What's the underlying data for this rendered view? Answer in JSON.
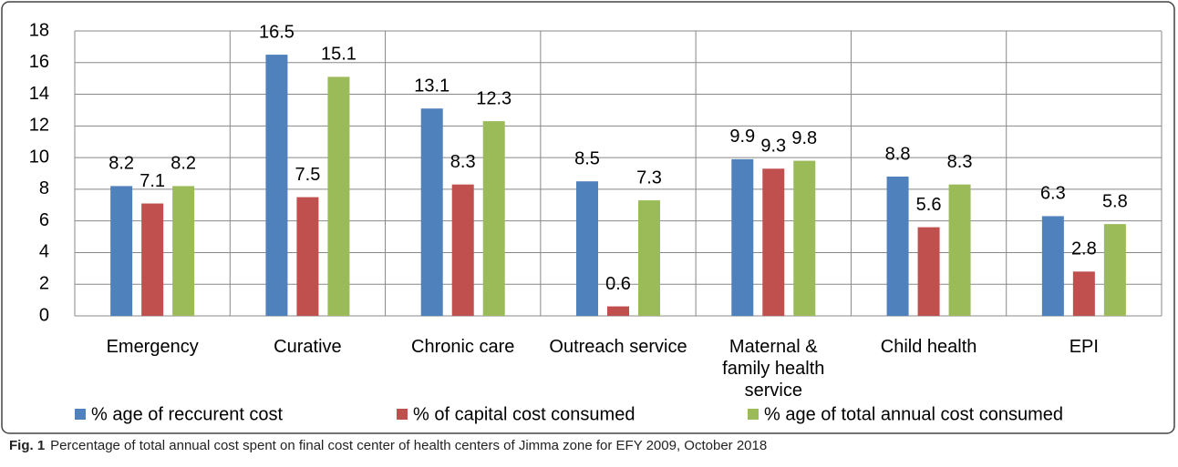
{
  "chart_data": {
    "type": "bar",
    "categories": [
      "Emergency",
      "Curative",
      "Chronic care",
      "Outreach service",
      "Maternal  & family health service",
      "Child health",
      "EPI"
    ],
    "series": [
      {
        "name": "% age of reccurent cost",
        "color": "#4f81bd",
        "values": [
          8.2,
          16.5,
          13.1,
          8.5,
          9.9,
          8.8,
          6.3
        ]
      },
      {
        "name": "% of  capital cost consumed",
        "color": "#c0504d",
        "values": [
          7.1,
          7.5,
          8.3,
          0.6,
          9.3,
          5.6,
          2.8
        ]
      },
      {
        "name": "% age of total annual cost consumed",
        "color": "#9bbb59",
        "values": [
          8.2,
          15.1,
          12.3,
          7.3,
          9.8,
          8.3,
          5.8
        ]
      }
    ],
    "ylim": [
      0,
      18
    ],
    "yticks": [
      0,
      2,
      4,
      6,
      8,
      10,
      12,
      14,
      16,
      18
    ],
    "grid": true,
    "legend": "bottom",
    "caption": {
      "label": "Fig. 1",
      "text": "Percentage of total annual cost spent on final cost center of health centers of Jimma zone for EFY 2009, October 2018"
    }
  }
}
